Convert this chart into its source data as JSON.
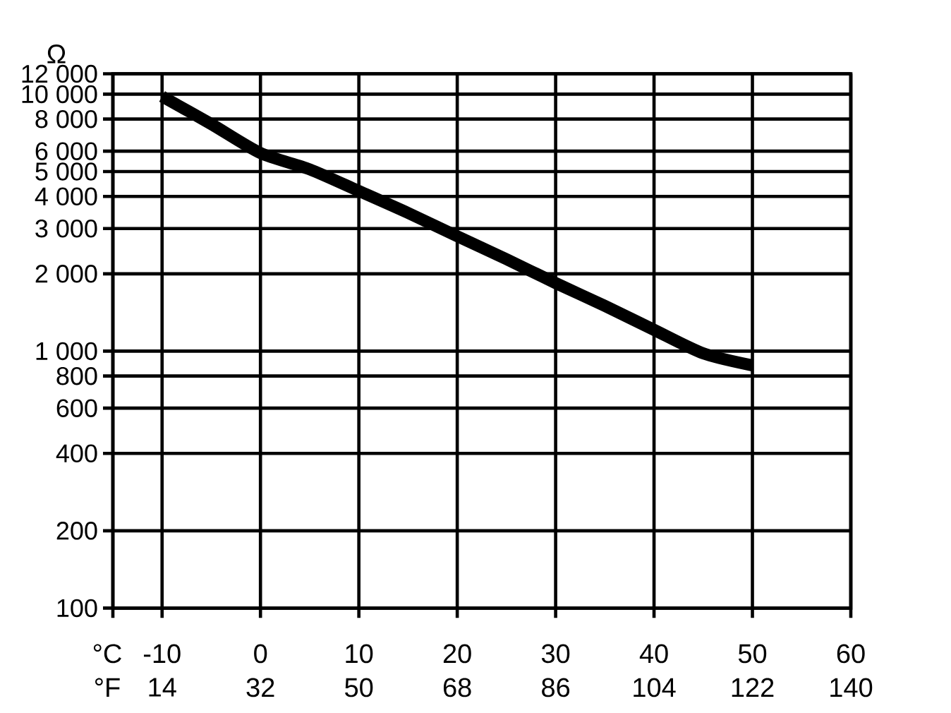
{
  "chart_data": {
    "type": "line",
    "xlabel": "°C",
    "x2label": "°F",
    "ylabel": "Ω",
    "x": [
      -10,
      -5,
      0,
      5,
      10,
      15,
      20,
      25,
      30,
      35,
      40,
      45,
      50
    ],
    "series": [
      {
        "color": "#000000",
        "values": [
          9800,
          7650,
          5900,
          5100,
          4200,
          3450,
          2800,
          2280,
          1840,
          1500,
          1210,
          980,
          880
        ]
      }
    ],
    "xlim": [
      -15,
      60
    ],
    "xticks": [
      {
        "value": -15,
        "label": null
      },
      -10,
      0,
      10,
      20,
      30,
      40,
      50,
      60
    ],
    "x2lim": [
      5,
      140
    ],
    "x2ticks": [
      14,
      32,
      50,
      68,
      86,
      104,
      122,
      140
    ],
    "ylim": [
      100,
      12000
    ],
    "yticks": [
      100,
      200,
      400,
      600,
      800,
      {
        "value": 1000,
        "label": "1 000"
      },
      {
        "value": 2000,
        "label": "2 000"
      },
      {
        "value": 3000,
        "label": "3 000"
      },
      {
        "value": 4000,
        "label": "4 000"
      },
      {
        "value": 5000,
        "label": "5 000"
      },
      {
        "value": 6000,
        "label": "6 000"
      },
      {
        "value": 8000,
        "label": "8 000"
      },
      {
        "value": 10000,
        "label": "10 000"
      },
      {
        "value": 12000,
        "label": "12 000"
      }
    ],
    "log": "y",
    "grid": true,
    "marker": "none",
    "line_style": "solid"
  }
}
